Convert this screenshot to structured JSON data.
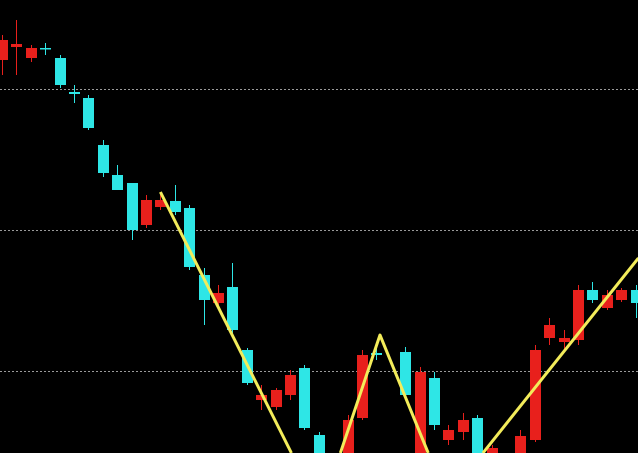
{
  "chart_data": {
    "type": "candlestick",
    "xlim": [
      -0.14,
      44.17
    ],
    "ylim": [
      0,
      453
    ],
    "grid": true,
    "grid_levels": [
      364,
      223,
      82
    ],
    "grid_color": "#9a9a9a",
    "background": "#000000",
    "up_color": "#e8201c",
    "down_color": "#2ee6e6",
    "open": [
      393,
      406,
      395,
      405,
      395,
      361,
      355,
      308,
      278,
      270,
      228,
      246,
      252,
      245,
      178,
      150,
      166,
      103,
      53,
      46,
      58,
      85,
      18,
      null,
      0,
      35,
      100,
      null,
      101,
      0,
      75,
      13,
      21,
      35,
      0,
      null,
      0,
      13,
      115,
      111,
      113,
      163,
      145,
      153,
      163
    ],
    "high": [
      418,
      433,
      408,
      410,
      398,
      368,
      358,
      313,
      288,
      270,
      258,
      258,
      268,
      248,
      185,
      168,
      190,
      105,
      68,
      65,
      83,
      88,
      21,
      null,
      38,
      103,
      108,
      null,
      106,
      86,
      81,
      28,
      40,
      38,
      8,
      null,
      23,
      108,
      135,
      123,
      168,
      171,
      163,
      165,
      168
    ],
    "low": [
      378,
      378,
      391,
      398,
      365,
      350,
      323,
      276,
      263,
      213,
      225,
      243,
      238,
      183,
      128,
      148,
      120,
      68,
      43,
      43,
      53,
      23,
      0,
      null,
      0,
      33,
      93,
      null,
      53,
      0,
      23,
      8,
      13,
      0,
      0,
      null,
      0,
      11,
      108,
      103,
      108,
      150,
      143,
      151,
      135
    ],
    "close": [
      413,
      409,
      405,
      404,
      368,
      359,
      325,
      280,
      263,
      223,
      253,
      253,
      241,
      186,
      153,
      160,
      123,
      70,
      58,
      63,
      78,
      25,
      0,
      null,
      33,
      98,
      98,
      null,
      58,
      81,
      28,
      23,
      33,
      0,
      5,
      null,
      17,
      103,
      128,
      115,
      163,
      153,
      158,
      163,
      150
    ],
    "overlay": {
      "type": "line",
      "color": "#f3ec5a",
      "x": [
        11,
        20.1,
        null,
        23.5,
        26.25,
        29.6,
        null,
        33.4,
        44.2
      ],
      "values": [
        261,
        0,
        null,
        0,
        118,
        0,
        null,
        0,
        195
      ]
    }
  }
}
